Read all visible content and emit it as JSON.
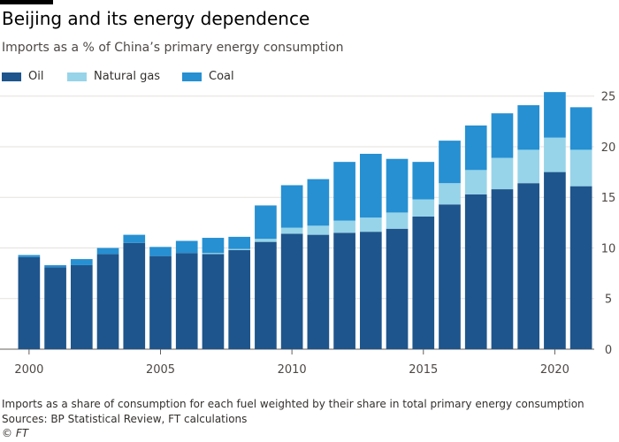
{
  "title": "Beijing and its energy dependence",
  "subtitle": "Imports as a % of China’s primary energy consumption",
  "footnote": "Imports as a share of consumption for each fuel weighted by their share in total primary energy consumption",
  "sources": "Sources: BP Statistical Review, FT calculations",
  "copyright": "© FT",
  "colors": {
    "oil": "#1e558c",
    "gas": "#97d4e9",
    "coal": "#2690d2"
  },
  "chart_data": {
    "type": "bar",
    "stacked": true,
    "categories": [
      "2000",
      "2001",
      "2002",
      "2003",
      "2004",
      "2005",
      "2006",
      "2007",
      "2008",
      "2009",
      "2010",
      "2011",
      "2012",
      "2013",
      "2014",
      "2015",
      "2016",
      "2017",
      "2018",
      "2019",
      "2020",
      "2021"
    ],
    "series": [
      {
        "name": "Oil",
        "color": "#1e558c",
        "values": [
          9.1,
          8.1,
          8.3,
          9.4,
          10.5,
          9.2,
          9.5,
          9.4,
          9.8,
          10.6,
          11.4,
          11.3,
          11.5,
          11.6,
          11.9,
          13.1,
          14.3,
          15.3,
          15.8,
          16.4,
          17.5,
          16.1
        ]
      },
      {
        "name": "Natural gas",
        "color": "#97d4e9",
        "values": [
          0.0,
          0.0,
          0.0,
          0.0,
          0.0,
          0.0,
          0.0,
          0.1,
          0.1,
          0.3,
          0.6,
          0.9,
          1.2,
          1.4,
          1.6,
          1.7,
          2.1,
          2.4,
          3.1,
          3.3,
          3.4,
          3.6
        ]
      },
      {
        "name": "Coal",
        "color": "#2690d2",
        "values": [
          0.2,
          0.2,
          0.6,
          0.6,
          0.8,
          0.9,
          1.2,
          1.5,
          1.2,
          3.3,
          4.2,
          4.6,
          5.8,
          6.3,
          5.3,
          3.7,
          4.2,
          4.4,
          4.4,
          4.4,
          4.5,
          4.2
        ]
      }
    ],
    "xticks": [
      "2000",
      "2005",
      "2010",
      "2015",
      "2020"
    ],
    "yticks": [
      0,
      5,
      10,
      15,
      20,
      25
    ],
    "ylim": [
      0,
      25.5
    ],
    "grid": true,
    "y_axis_side": "right",
    "legend_position": "top-left"
  }
}
